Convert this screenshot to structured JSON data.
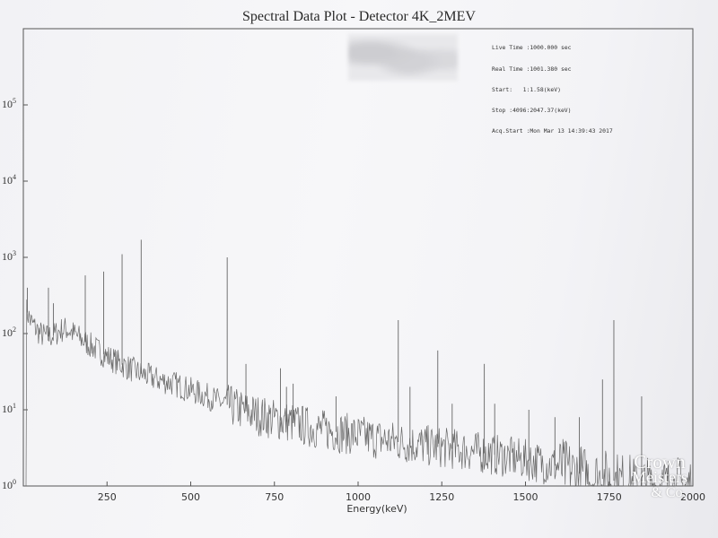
{
  "chart_data": {
    "type": "line",
    "title": "Spectral Data Plot - Detector 4K_2MEV",
    "xlabel": "Energy(keV)",
    "ylabel": "",
    "y_scale": "log",
    "xlim": [
      0,
      2000
    ],
    "ylim": [
      1,
      1000000
    ],
    "x_ticks": [
      "250",
      "500",
      "750",
      "1000",
      "1250",
      "1500",
      "1750",
      "2000"
    ],
    "y_ticks": [
      {
        "base": "10",
        "exp": "5"
      },
      {
        "base": "10",
        "exp": "4"
      },
      {
        "base": "10",
        "exp": "3"
      },
      {
        "base": "10",
        "exp": "2"
      },
      {
        "base": "10",
        "exp": "1"
      },
      {
        "base": "10",
        "exp": "0"
      }
    ],
    "grid": false,
    "acquisition_info": [
      "Live Time :1000.000 sec",
      "Real Time :1001.380 sec",
      "Start:   1:1.58(keV)",
      "Stop :4096:2047.37(keV)",
      "Acq.Start :Mon Mar 13 14:39:43 2017"
    ],
    "baseline": [
      [
        10,
        200
      ],
      [
        20,
        150
      ],
      [
        35,
        120
      ],
      [
        50,
        100
      ],
      [
        70,
        90
      ],
      [
        90,
        95
      ],
      [
        110,
        110
      ],
      [
        130,
        115
      ],
      [
        150,
        100
      ],
      [
        180,
        80
      ],
      [
        200,
        70
      ],
      [
        250,
        50
      ],
      [
        300,
        38
      ],
      [
        350,
        30
      ],
      [
        400,
        25
      ],
      [
        450,
        22
      ],
      [
        500,
        18
      ],
      [
        550,
        15
      ],
      [
        600,
        12
      ],
      [
        650,
        10
      ],
      [
        700,
        8.5
      ],
      [
        750,
        7.5
      ],
      [
        800,
        6.8
      ],
      [
        850,
        6
      ],
      [
        900,
        5.4
      ],
      [
        950,
        5
      ],
      [
        1000,
        4.6
      ],
      [
        1050,
        4.2
      ],
      [
        1100,
        3.9
      ],
      [
        1150,
        3.6
      ],
      [
        1200,
        3.4
      ],
      [
        1250,
        3.2
      ],
      [
        1300,
        3
      ],
      [
        1350,
        2.8
      ],
      [
        1400,
        2.6
      ],
      [
        1450,
        2.4
      ],
      [
        1500,
        2.2
      ],
      [
        1550,
        2
      ],
      [
        1600,
        1.8
      ],
      [
        1650,
        1.5
      ],
      [
        1700,
        1.3
      ],
      [
        1750,
        1.2
      ],
      [
        1800,
        1.1
      ],
      [
        1850,
        1
      ],
      [
        1900,
        1
      ],
      [
        1950,
        1
      ],
      [
        2000,
        1
      ]
    ],
    "peaks": [
      {
        "x": 12,
        "y": 400
      },
      {
        "x": 75,
        "y": 400
      },
      {
        "x": 90,
        "y": 250
      },
      {
        "x": 185,
        "y": 580
      },
      {
        "x": 240,
        "y": 650
      },
      {
        "x": 295,
        "y": 1100
      },
      {
        "x": 352,
        "y": 1700
      },
      {
        "x": 609,
        "y": 1000
      },
      {
        "x": 665,
        "y": 40
      },
      {
        "x": 768,
        "y": 35
      },
      {
        "x": 786,
        "y": 20
      },
      {
        "x": 806,
        "y": 22
      },
      {
        "x": 934,
        "y": 15
      },
      {
        "x": 1120,
        "y": 150
      },
      {
        "x": 1155,
        "y": 20
      },
      {
        "x": 1238,
        "y": 60
      },
      {
        "x": 1281,
        "y": 12
      },
      {
        "x": 1377,
        "y": 40
      },
      {
        "x": 1408,
        "y": 12
      },
      {
        "x": 1510,
        "y": 10
      },
      {
        "x": 1588,
        "y": 8
      },
      {
        "x": 1661,
        "y": 8
      },
      {
        "x": 1730,
        "y": 25
      },
      {
        "x": 1764,
        "y": 150
      },
      {
        "x": 1847,
        "y": 15
      }
    ]
  },
  "watermark": {
    "line1": "Crown",
    "line2": "Meisters",
    "line3": "& Co."
  }
}
